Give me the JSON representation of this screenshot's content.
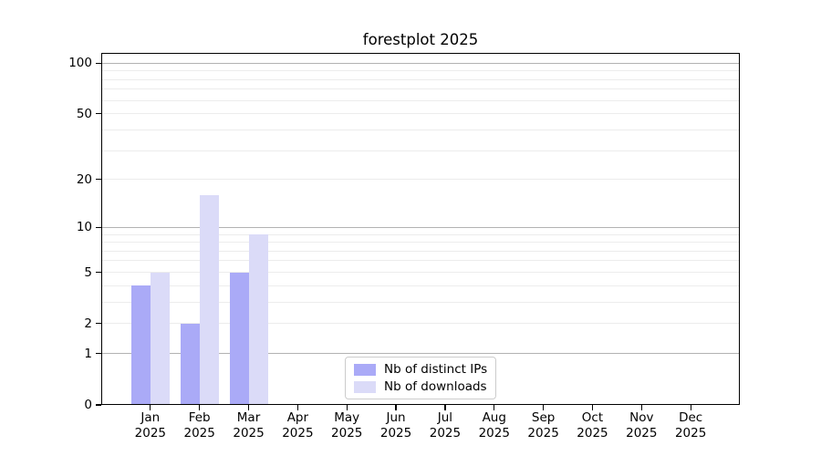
{
  "title": "forestplot 2025",
  "colors": {
    "bar_distinct_ips": "#aaaaf7",
    "bar_downloads": "#dbdbf8",
    "grid_major": "#b2b2b2",
    "grid_minor": "#ececec",
    "axis": "#000000",
    "legend_border": "#cccccc"
  },
  "chart_data": {
    "type": "bar",
    "title": "forestplot 2025",
    "categories": [
      "Jan",
      "Feb",
      "Mar",
      "Apr",
      "May",
      "Jun",
      "Jul",
      "Aug",
      "Sep",
      "Oct",
      "Nov",
      "Dec"
    ],
    "category_year": "2025",
    "series": [
      {
        "name": "Nb of distinct IPs",
        "key": "distinct-ips",
        "color": "#aaaaf7",
        "values": [
          4,
          2,
          5,
          0,
          0,
          0,
          0,
          0,
          0,
          0,
          0,
          0
        ]
      },
      {
        "name": "Nb of downloads",
        "key": "downloads",
        "color": "#dbdbf8",
        "values": [
          5,
          16,
          9,
          0,
          0,
          0,
          0,
          0,
          0,
          0,
          0,
          0
        ]
      }
    ],
    "xlabel": "",
    "ylabel": "",
    "yscale": "log10(value+1)",
    "yticks": [
      0,
      1,
      2,
      5,
      10,
      20,
      50,
      100
    ],
    "ylim": [
      0,
      115
    ],
    "grid_major": [
      1,
      10,
      100
    ],
    "grid_minor": [
      2,
      3,
      4,
      5,
      6,
      7,
      8,
      9,
      20,
      30,
      40,
      50,
      60,
      70,
      80,
      90
    ],
    "grid": "on",
    "legend_position": "lower-center"
  },
  "legend": {
    "items": [
      {
        "label": "Nb of distinct IPs"
      },
      {
        "label": "Nb of downloads"
      }
    ]
  }
}
